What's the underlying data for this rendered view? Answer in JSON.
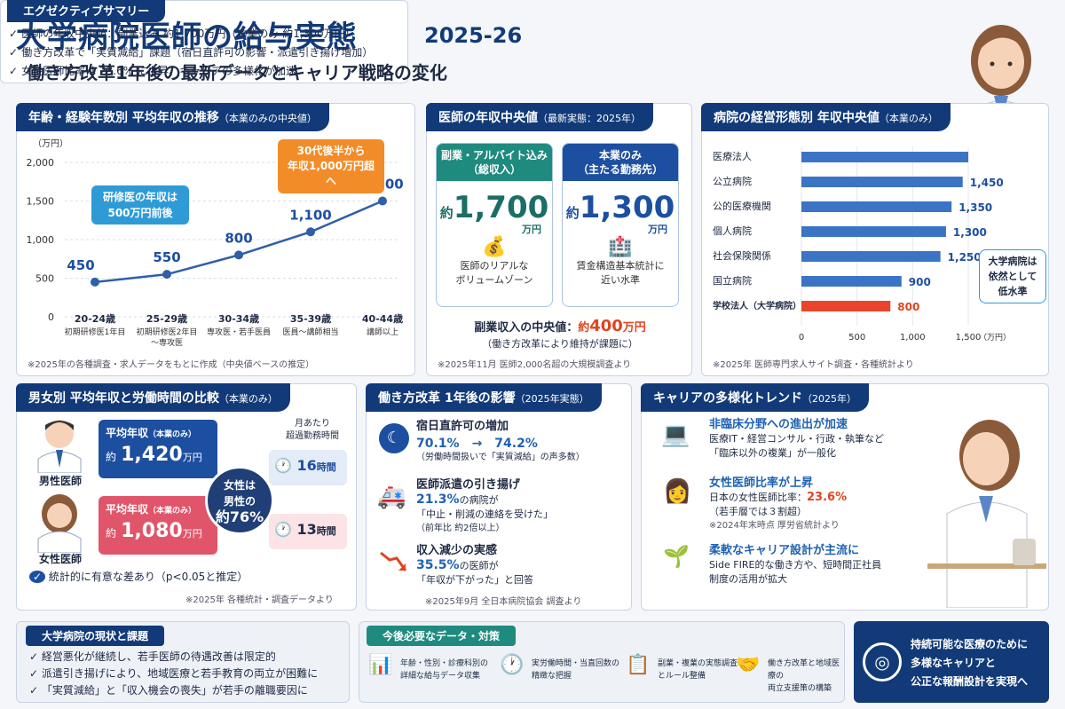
{
  "header": {
    "title": "大学病院医師の給与実態",
    "year": "2025-26",
    "subtitle": "働き方改革1年後の最新データとキャリア戦略の変化"
  },
  "summary": {
    "title": "エグゼクティブサマリー",
    "items": [
      "医師の年収中央値：副業込み 約1,700万円（本業のみ 約1,300万円）",
      "働き方改革で「実質減給」課題（宿日直許可の影響・派遣引き揚げ増加）",
      "女性医師比率は 23.6% に上昇、キャリアの多様化が加速"
    ]
  },
  "age_panel": {
    "title": "年齢・経験年数別 平均年収の推移",
    "title_note": "（本業のみの中央値）",
    "unit": "（万円）",
    "callout_orange": [
      "30代後半から",
      "年収1,000万円超へ"
    ],
    "callout_blue": [
      "研修医の年収は",
      "500万円前後"
    ],
    "note": "※2025年の各種調査・求人データをもとに作成（中央値ベースの推定）"
  },
  "chart_data": [
    {
      "type": "line",
      "y_unit": "万円",
      "categories": [
        "20-24歳",
        "25-29歳",
        "30-34歳",
        "35-39歳",
        "40-44歳"
      ],
      "category_subs": [
        [
          "初期研修医1年目"
        ],
        [
          "初期研修医2年目",
          "〜専攻医"
        ],
        [
          "専攻医・若手医員"
        ],
        [
          "医員〜講師相当"
        ],
        [
          "講師以上"
        ]
      ],
      "values": [
        450,
        550,
        800,
        1100,
        1500
      ],
      "value_labels": [
        "450",
        "550",
        "800",
        "1,100",
        "1,500"
      ],
      "yticks": [
        "0",
        "500",
        "1,000",
        "1,500",
        "2,000"
      ],
      "ylim": [
        0,
        2000
      ]
    },
    {
      "type": "bar",
      "title": "病院の経営形態別 年収中央値",
      "title_note": "（本業のみ）",
      "categories": [
        "医療法人",
        "公立病院",
        "公的医療機関",
        "個人病院",
        "社会保険関係",
        "国立病院",
        "学校法人（大学病院）"
      ],
      "values": [
        1500,
        1450,
        1350,
        1300,
        1250,
        900,
        800
      ],
      "value_labels": [
        "",
        "1,450",
        "1,350",
        "1,300",
        "1,250",
        "900",
        "800"
      ],
      "xticks": [
        "0",
        "500",
        "1,000",
        "1,500"
      ],
      "x_unit": "（万円）",
      "xlim": [
        0,
        1500
      ],
      "colors": {
        "normal": "#3b74c4",
        "highlight": "#e8452c"
      }
    }
  ],
  "median_panel": {
    "title": "医師の年収中央値",
    "title_note": "（最新実態：2025年）",
    "card1": {
      "head": [
        "副業・アルバイト込み",
        "（総収入）"
      ],
      "prefix": "約",
      "value": "1,700",
      "unit": "万円",
      "desc": [
        "医師のリアルな",
        "ボリュームゾーン"
      ]
    },
    "card2": {
      "head": [
        "本業のみ",
        "（主たる勤務先）"
      ],
      "prefix": "約",
      "value": "1,300",
      "unit": "万円",
      "desc": [
        "賃金構造基本統計に",
        "近い水準"
      ]
    },
    "side_label": "副業収入の中央値：",
    "side_prefix": "約",
    "side_value": "400",
    "side_unit": "万円",
    "side_note": "（働き方改革により維持が課題に）",
    "note": "※2025年11月 医師2,000名超の大規模調査より"
  },
  "hospital_panel": {
    "callout": [
      "大学病院は",
      "依然として",
      "低水準"
    ],
    "note": "※2025年 医師専門求人サイト調査・各種統計より"
  },
  "gender_panel": {
    "title": "男女別 平均年収と労働時間の比較",
    "title_note": "（本業のみ）",
    "male_label": "男性医師",
    "female_label": "女性医師",
    "male_box": {
      "label": "平均年収",
      "label_note": "（本業のみ）",
      "prefix": "約",
      "value": "1,420",
      "unit": "万円"
    },
    "female_box": {
      "label": "平均年収",
      "label_note": "（本業のみ）",
      "prefix": "約",
      "value": "1,080",
      "unit": "万円"
    },
    "circle": [
      "女性は",
      "男性の",
      "約76%"
    ],
    "overtime_head": [
      "月あたり",
      "超過勤務時間"
    ],
    "male_hours": "16",
    "female_hours": "13",
    "hours_unit": "時間",
    "sig": "統計的に有意な差あり（p<0.05と推定）",
    "note": "※2025年 各種統計・調査データより"
  },
  "reform_panel": {
    "title": "働き方改革 1年後の影響",
    "title_note": "（2025年実態）",
    "items": [
      {
        "title": "宿日直許可の増加",
        "l1": "70.1%　→　74.2%",
        "l2": "（労働時間扱いで「実質減給」の声多数）"
      },
      {
        "title": "医師派遣の引き揚げ",
        "l1": "21.3%",
        "l1b": "の病院が",
        "l2": "「中止・削減の連絡を受けた」",
        "l3": "（前年比 約2倍以上）"
      },
      {
        "title": "収入減少の実感",
        "l1": "35.5%",
        "l1b": "の医師が",
        "l2": "「年収が下がった」と回答"
      }
    ],
    "note": "※2025年9月 全日本病院協会 調査より"
  },
  "career_panel": {
    "title": "キャリアの多様化トレンド",
    "title_note": "（2025年）",
    "items": [
      {
        "title": "非臨床分野への進出が加速",
        "lines": [
          "医療IT・経営コンサル・行政・執筆など",
          "「臨床以外の複業」が一般化"
        ]
      },
      {
        "title": "女性医師比率が上昇",
        "line1": "日本の女性医師比率：",
        "pct": "23.6%",
        "lines": [
          "（若手層では３割超）",
          "※2024年末時点 厚労省統計より"
        ]
      },
      {
        "title": "柔軟なキャリア設計が主流に",
        "lines": [
          "Side FIRE的な働き方や、短時間正社員",
          "制度の活用が拡大"
        ]
      }
    ]
  },
  "status_panel": {
    "title": "大学病院の現状と課題",
    "items": [
      "経営悪化が継続し、若手医師の待遇改善は限定的",
      "派遣引き揚げにより、地域医療と若手教育の両立が困難に",
      "「実質減給」と「収入機会の喪失」が若手の離職要因に"
    ]
  },
  "needs_panel": {
    "title": "今後必要なデータ・対策",
    "items": [
      [
        "年齢・性別・診療科別の",
        "詳細な給与データ収集"
      ],
      [
        "実労働時間・当直回数の",
        "精緻な把握"
      ],
      [
        "副業・複業の実態調査",
        "とルール整備"
      ],
      [
        "働き方改革と地域医療の",
        "両立支援策の構築"
      ]
    ]
  },
  "goal_panel": {
    "lines": [
      "持続可能な医療のために",
      "多様なキャリアと",
      "公正な報酬設計を実現へ"
    ]
  }
}
